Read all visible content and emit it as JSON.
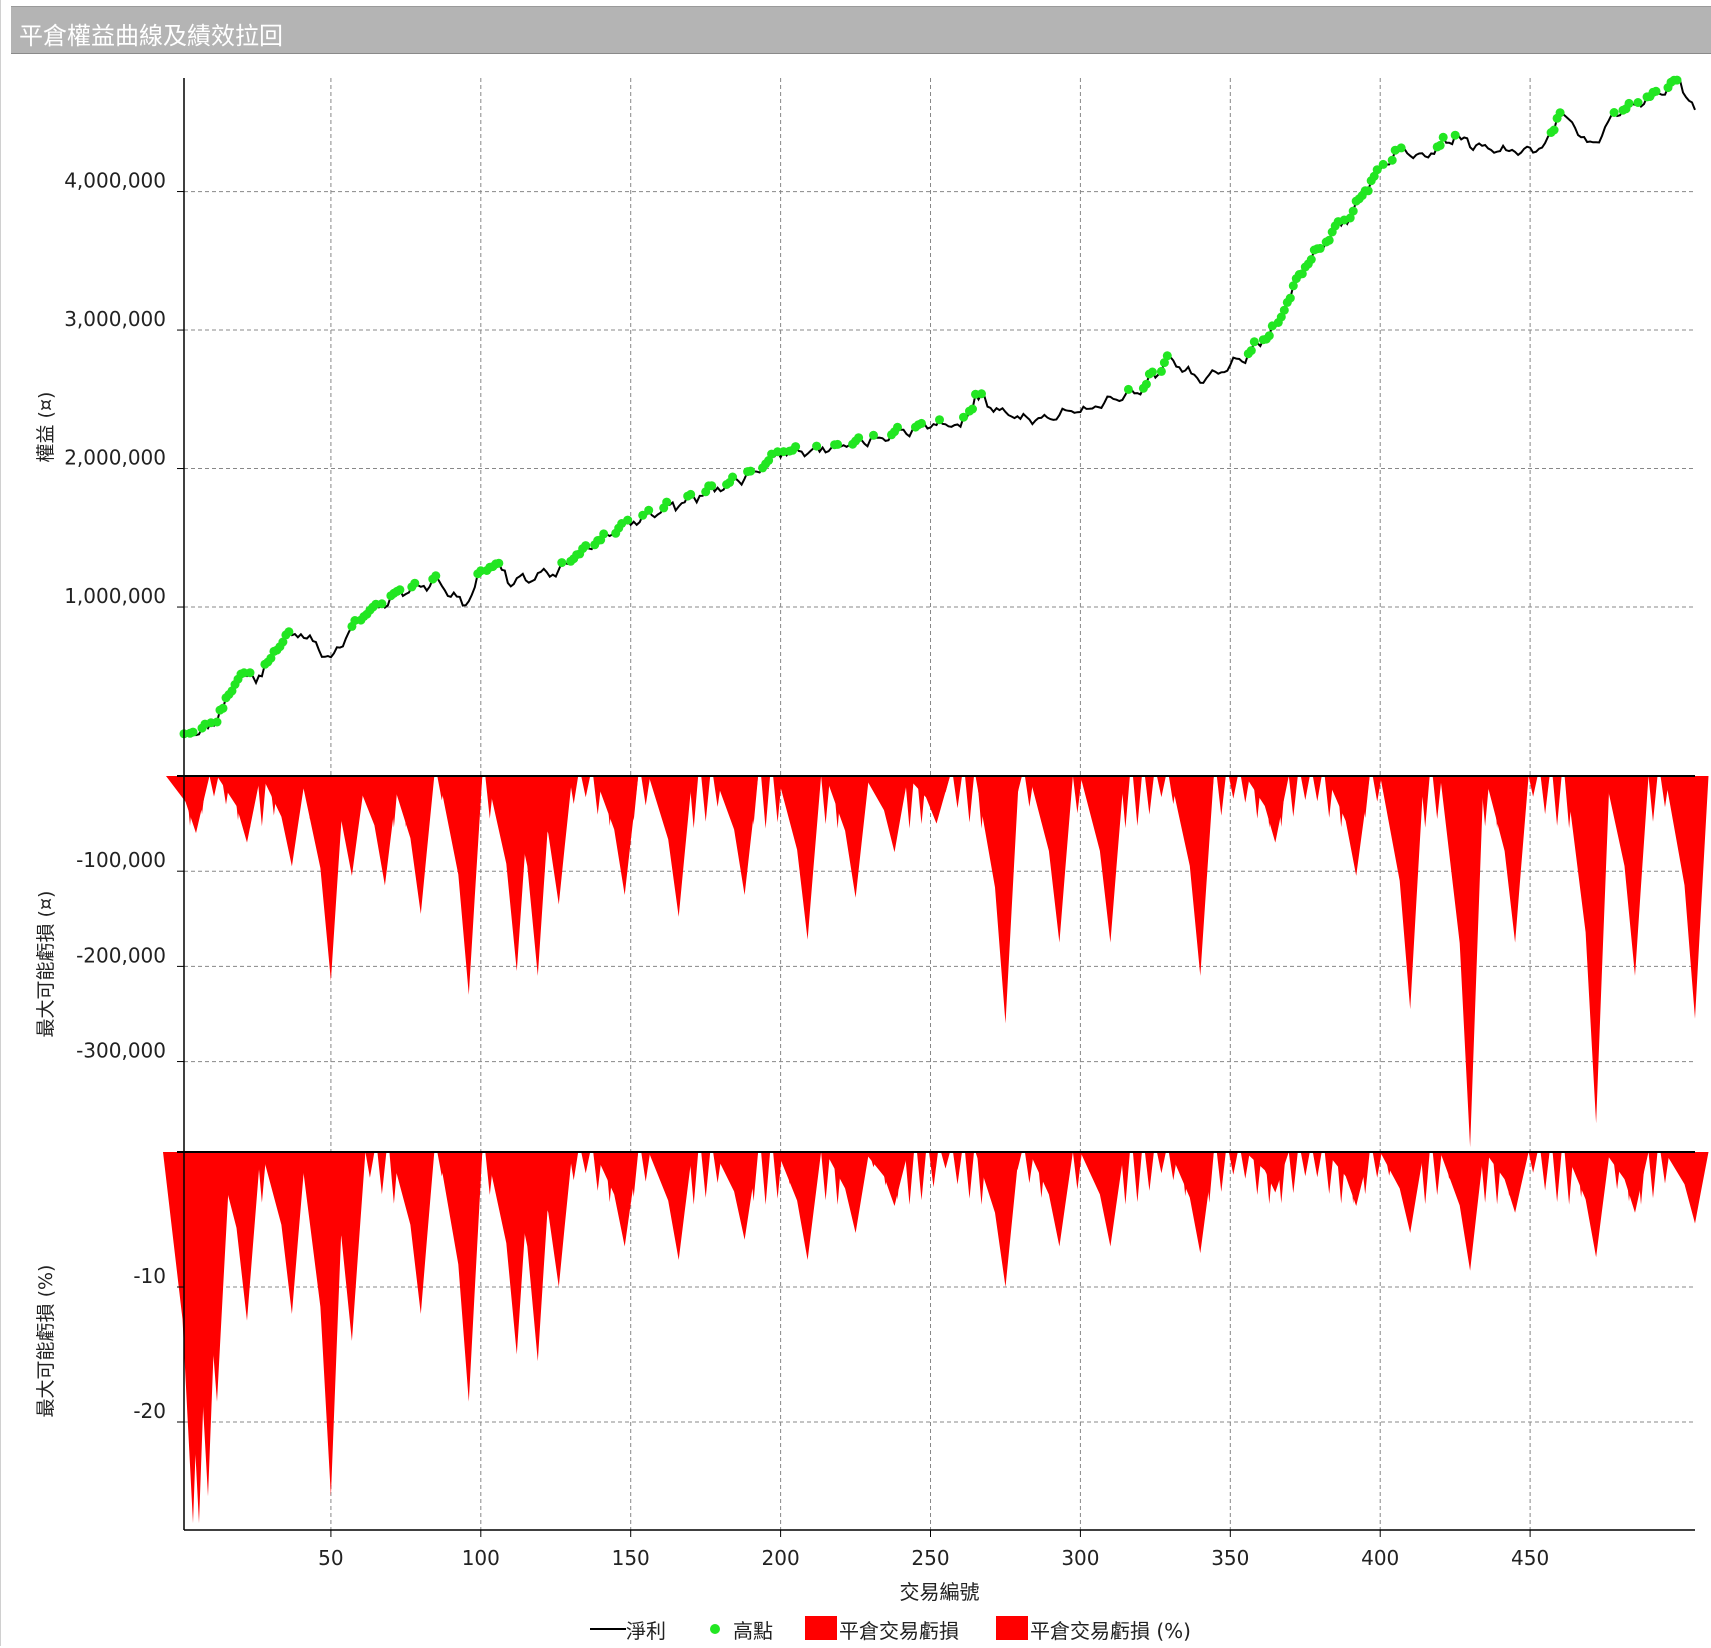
{
  "window": {
    "title": "平倉權益曲線及績效拉回"
  },
  "colors": {
    "equity_line": "#000000",
    "high_marker": "#22e622",
    "drawdown_fill": "#ff0000",
    "grid": "#888888",
    "axis": "#000000"
  },
  "chart_data": [
    {
      "type": "line",
      "id": "equity",
      "ylabel": "權益 (¤)",
      "ylim": [
        -220000,
        4820000
      ],
      "yticks": [
        1000000,
        2000000,
        3000000,
        4000000
      ],
      "ytick_labels": [
        "1,000,000",
        "2,000,000",
        "3,000,000",
        "4,000,000"
      ],
      "xlim": [
        1,
        505
      ],
      "x_anchors": [
        1,
        10,
        15,
        20,
        25,
        35,
        40,
        50,
        60,
        75,
        85,
        95,
        100,
        105,
        110,
        120,
        125,
        135,
        150,
        170,
        190,
        200,
        220,
        250,
        260,
        265,
        280,
        300,
        320,
        330,
        340,
        355,
        365,
        375,
        390,
        395,
        405,
        415,
        425,
        435,
        445,
        455,
        460,
        470,
        480,
        495,
        500,
        505
      ],
      "y_anchors": [
        60000,
        130000,
        330000,
        520000,
        480000,
        780000,
        820000,
        620000,
        940000,
        1120000,
        1190000,
        1010000,
        1250000,
        1330000,
        1170000,
        1230000,
        1240000,
        1430000,
        1610000,
        1780000,
        1960000,
        2120000,
        2160000,
        2310000,
        2300000,
        2520000,
        2350000,
        2410000,
        2570000,
        2800000,
        2620000,
        2800000,
        3020000,
        3480000,
        3830000,
        4020000,
        4290000,
        4270000,
        4400000,
        4300000,
        4290000,
        4310000,
        4590000,
        4320000,
        4600000,
        4720000,
        4810000,
        4580000
      ],
      "series": [
        {
          "name": "淨利",
          "style": "line"
        },
        {
          "name": "高點",
          "style": "marker",
          "description": "new equity highs"
        }
      ]
    },
    {
      "type": "area",
      "id": "drawdown_abs",
      "ylabel": "最大可能虧損 (¤)",
      "ylim": [
        -395000,
        0
      ],
      "yticks": [
        -100000,
        -200000,
        -300000
      ],
      "ytick_labels": [
        "-100,000",
        "-200,000",
        "-300,000"
      ],
      "series": [
        {
          "name": "平倉交易虧損",
          "style": "area"
        }
      ],
      "troughs": [
        {
          "x": 5,
          "y": -60000
        },
        {
          "x": 22,
          "y": -70000
        },
        {
          "x": 37,
          "y": -95000
        },
        {
          "x": 50,
          "y": -215000
        },
        {
          "x": 57,
          "y": -105000
        },
        {
          "x": 68,
          "y": -115000
        },
        {
          "x": 80,
          "y": -145000
        },
        {
          "x": 96,
          "y": -230000
        },
        {
          "x": 112,
          "y": -205000
        },
        {
          "x": 119,
          "y": -210000
        },
        {
          "x": 126,
          "y": -135000
        },
        {
          "x": 148,
          "y": -125000
        },
        {
          "x": 166,
          "y": -148000
        },
        {
          "x": 188,
          "y": -125000
        },
        {
          "x": 209,
          "y": -172000
        },
        {
          "x": 225,
          "y": -128000
        },
        {
          "x": 238,
          "y": -80000
        },
        {
          "x": 252,
          "y": -50000
        },
        {
          "x": 275,
          "y": -260000
        },
        {
          "x": 293,
          "y": -175000
        },
        {
          "x": 310,
          "y": -175000
        },
        {
          "x": 340,
          "y": -210000
        },
        {
          "x": 365,
          "y": -70000
        },
        {
          "x": 392,
          "y": -105000
        },
        {
          "x": 410,
          "y": -245000
        },
        {
          "x": 430,
          "y": -390000
        },
        {
          "x": 445,
          "y": -175000
        },
        {
          "x": 472,
          "y": -365000
        },
        {
          "x": 485,
          "y": -210000
        },
        {
          "x": 505,
          "y": -255000
        }
      ]
    },
    {
      "type": "area",
      "id": "drawdown_pct",
      "ylabel": "最大可能虧損 (%)",
      "ylim": [
        -28,
        0
      ],
      "yticks": [
        -10,
        -20
      ],
      "ytick_labels": [
        "-10",
        "-20"
      ],
      "xlabel": "交易編號",
      "xticks": [
        50,
        100,
        150,
        200,
        250,
        300,
        350,
        400,
        450
      ],
      "xtick_labels": [
        "50",
        "100",
        "150",
        "200",
        "250",
        "300",
        "350",
        "400",
        "450"
      ],
      "series": [
        {
          "name": "平倉交易虧損 (%)",
          "style": "area"
        }
      ],
      "troughs": [
        {
          "x": 4,
          "y": -27.5
        },
        {
          "x": 6,
          "y": -27.5
        },
        {
          "x": 9,
          "y": -25.5
        },
        {
          "x": 12,
          "y": -18.5
        },
        {
          "x": 22,
          "y": -12.5
        },
        {
          "x": 37,
          "y": -12
        },
        {
          "x": 50,
          "y": -25.5
        },
        {
          "x": 57,
          "y": -14
        },
        {
          "x": 80,
          "y": -12
        },
        {
          "x": 96,
          "y": -18.5
        },
        {
          "x": 112,
          "y": -15
        },
        {
          "x": 119,
          "y": -15.5
        },
        {
          "x": 126,
          "y": -10
        },
        {
          "x": 148,
          "y": -7
        },
        {
          "x": 166,
          "y": -8
        },
        {
          "x": 188,
          "y": -6.5
        },
        {
          "x": 209,
          "y": -8
        },
        {
          "x": 225,
          "y": -6
        },
        {
          "x": 238,
          "y": -4
        },
        {
          "x": 275,
          "y": -10
        },
        {
          "x": 293,
          "y": -7
        },
        {
          "x": 310,
          "y": -7
        },
        {
          "x": 340,
          "y": -7.5
        },
        {
          "x": 365,
          "y": -3
        },
        {
          "x": 392,
          "y": -4
        },
        {
          "x": 410,
          "y": -6
        },
        {
          "x": 430,
          "y": -8.8
        },
        {
          "x": 445,
          "y": -4.5
        },
        {
          "x": 472,
          "y": -7.8
        },
        {
          "x": 485,
          "y": -4.5
        },
        {
          "x": 505,
          "y": -5.3
        }
      ]
    }
  ],
  "legend": {
    "items": [
      {
        "label": "淨利",
        "type": "line"
      },
      {
        "label": "高點",
        "type": "marker"
      },
      {
        "label": "平倉交易虧損",
        "type": "area"
      },
      {
        "label": "平倉交易虧損 (%)",
        "type": "area"
      }
    ]
  }
}
